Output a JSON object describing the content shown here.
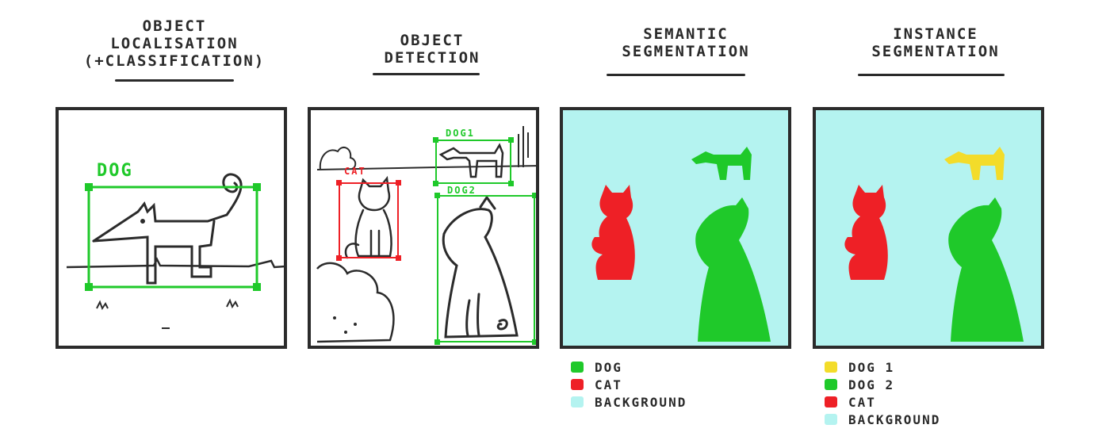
{
  "panels": [
    {
      "title_lines": [
        "OBJECT",
        "LOCALISATION",
        "(+CLASSIFICATION)"
      ]
    },
    {
      "title_lines": [
        "OBJECT",
        "DETECTION"
      ]
    },
    {
      "title_lines": [
        "SEMANTIC",
        "SEGMENTATION"
      ]
    },
    {
      "title_lines": [
        "INSTANCE",
        "SEGMENTATION"
      ]
    }
  ],
  "localisation": {
    "box_label": "DOG"
  },
  "detection": {
    "labels": [
      "DOG1",
      "CAT",
      "DOG2"
    ]
  },
  "semantic_legend": [
    {
      "label": "DOG",
      "color": "#1fc92a"
    },
    {
      "label": "CAT",
      "color": "#ee2026"
    },
    {
      "label": "BACKGROUND",
      "color": "#b4f3f0"
    }
  ],
  "instance_legend": [
    {
      "label": "DOG 1",
      "color": "#f3dc2a"
    },
    {
      "label": "DOG 2",
      "color": "#1fc92a"
    },
    {
      "label": "CAT",
      "color": "#ee2026"
    },
    {
      "label": "BACKGROUND",
      "color": "#b4f3f0"
    }
  ],
  "colors": {
    "green": "#1fc92a",
    "red": "#ee2026",
    "yellow": "#f3dc2a",
    "cyan": "#b4f3f0",
    "ink": "#2b2b2b"
  }
}
